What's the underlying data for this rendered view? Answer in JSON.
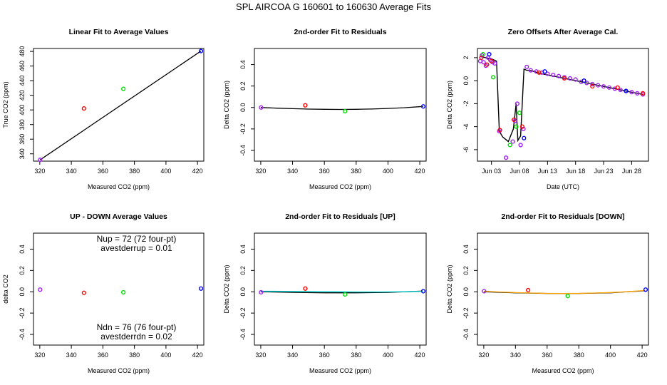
{
  "figure_title": "SPL   AIRCOA G   160601 to 160630   Average Fits",
  "chart_data": [
    {
      "id": "p1",
      "type": "scatter",
      "title": "Linear Fit to Average Values",
      "xlabel": "Measured CO2 (ppm)",
      "ylabel": "True CO2 (ppm)",
      "xlim": [
        316,
        424
      ],
      "ylim": [
        330,
        484
      ],
      "xticks": [
        320,
        340,
        360,
        380,
        400,
        420
      ],
      "yticks": [
        340,
        360,
        380,
        400,
        420,
        440,
        460,
        480
      ],
      "points": [
        {
          "x": 320.2,
          "y": 331.8,
          "color": "#a020f0"
        },
        {
          "x": 348.0,
          "y": 402.0,
          "color": "#ff0000"
        },
        {
          "x": 373.0,
          "y": 428.8,
          "color": "#00dd00"
        },
        {
          "x": 422.2,
          "y": 480.5,
          "color": "#0000ff"
        }
      ],
      "lines": [
        {
          "name": "fit",
          "color": "#000000",
          "x": [
            320.2,
            422.2
          ],
          "y": [
            331.8,
            480.5
          ]
        }
      ],
      "annotations": []
    },
    {
      "id": "p2",
      "type": "scatter",
      "title": "2nd-order Fit to Residuals",
      "xlabel": "Measured CO2 (ppm)",
      "ylabel": "Delta CO2 (ppm)",
      "xlim": [
        316,
        424
      ],
      "ylim": [
        -0.5,
        0.55
      ],
      "xticks": [
        320,
        340,
        360,
        380,
        400,
        420
      ],
      "yticks": [
        -0.4,
        -0.2,
        0.0,
        0.2,
        0.4
      ],
      "points": [
        {
          "x": 320.2,
          "y": 0.0,
          "color": "#a020f0"
        },
        {
          "x": 348.0,
          "y": 0.02,
          "color": "#ff0000"
        },
        {
          "x": 373.0,
          "y": -0.035,
          "color": "#00dd00"
        },
        {
          "x": 422.2,
          "y": 0.01,
          "color": "#0000ff"
        }
      ],
      "lines": [
        {
          "name": "fit",
          "color": "#000000",
          "x": [
            320,
            330,
            340,
            350,
            360,
            370,
            380,
            390,
            400,
            410,
            422
          ],
          "y": [
            0.0,
            -0.006,
            -0.011,
            -0.015,
            -0.017,
            -0.018,
            -0.017,
            -0.014,
            -0.009,
            -0.002,
            0.01
          ]
        }
      ],
      "annotations": []
    },
    {
      "id": "p3",
      "type": "scatter",
      "title": "Zero Offsets After Average Cal.",
      "xlabel": "Date (UTC)",
      "ylabel": "Delta CO2 (ppm)",
      "xlim": [
        0.5,
        31.0
      ],
      "ylim": [
        -7.0,
        2.8
      ],
      "xticks": [
        3,
        8,
        13,
        18,
        23,
        28
      ],
      "xticklabels": [
        "Jun 03",
        "Jun 08",
        "Jun 13",
        "Jun 18",
        "Jun 23",
        "Jun 28"
      ],
      "yticks": [
        -6,
        -4,
        -2,
        0,
        2
      ],
      "points": [],
      "series": [
        {
          "name": "purple",
          "color": "#a020f0",
          "x": [
            1.0,
            1.3,
            1.6,
            2.0,
            2.4,
            2.8,
            3.2,
            3.6,
            4.4,
            5.6,
            6.8,
            7.2,
            7.6,
            8.2,
            8.7,
            9.3,
            10.0,
            11.0,
            12.0,
            13.0,
            14.0,
            15.0,
            16.0,
            17.0,
            18.0,
            19.0,
            20.0,
            21.0,
            22.0,
            23.0,
            24.0,
            25.0,
            26.0,
            27.0,
            28.0,
            29.0,
            30.0
          ],
          "y": [
            1.7,
            2.2,
            1.6,
            1.3,
            2.0,
            1.8,
            1.6,
            1.5,
            -4.4,
            -6.7,
            -5.3,
            -3.5,
            -2.0,
            -5.6,
            -4.2,
            1.2,
            0.9,
            0.8,
            0.7,
            0.6,
            0.5,
            0.4,
            0.3,
            0.2,
            0.1,
            -0.1,
            -0.2,
            -0.3,
            -0.4,
            -0.5,
            -0.6,
            -0.7,
            -0.8,
            -0.9,
            -1.0,
            -1.1,
            -1.2
          ]
        },
        {
          "name": "red",
          "color": "#ff0000",
          "x": [
            1.2,
            2.2,
            3.0,
            4.5,
            7.0,
            8.5,
            11.5,
            16.0,
            21.0,
            25.5,
            30.0
          ],
          "y": [
            2.0,
            1.4,
            1.7,
            -4.3,
            -3.4,
            -4.0,
            0.7,
            0.2,
            -0.5,
            -0.6,
            -1.1
          ]
        },
        {
          "name": "green",
          "color": "#00dd00",
          "x": [
            1.5,
            3.3,
            6.3,
            7.4,
            8.0
          ],
          "y": [
            2.3,
            0.3,
            -5.6,
            -4.0,
            -2.8
          ]
        },
        {
          "name": "blue",
          "color": "#0000ff",
          "x": [
            2.6,
            8.8,
            12.5,
            19.5,
            27.0
          ],
          "y": [
            2.3,
            -5.0,
            0.8,
            0.0,
            -0.9
          ]
        }
      ],
      "lines": [
        {
          "name": "trend",
          "color": "#000000",
          "x": [
            1.0,
            2.0,
            3.0,
            3.9,
            4.4,
            5.0,
            6.0,
            6.9,
            7.4,
            7.7,
            8.2,
            8.8,
            9.3,
            9.8,
            12.0,
            15.0,
            18.0,
            21.0,
            24.0,
            27.0,
            30.0
          ],
          "y": [
            2.1,
            2.0,
            1.9,
            1.7,
            -4.4,
            -4.9,
            -5.3,
            -4.2,
            -2.0,
            -5.2,
            -4.8,
            1.0,
            0.9,
            0.9,
            0.6,
            0.3,
            0.0,
            -0.3,
            -0.6,
            -0.9,
            -1.2
          ]
        }
      ],
      "annotations": []
    },
    {
      "id": "p4",
      "type": "scatter",
      "title": "UP - DOWN Average Values",
      "xlabel": "Measured CO2 (ppm)",
      "ylabel": "delta CO2",
      "xlim": [
        316,
        424
      ],
      "ylim": [
        -0.5,
        0.55
      ],
      "xticks": [
        320,
        340,
        360,
        380,
        400,
        420
      ],
      "yticks": [
        -0.4,
        -0.2,
        0.0,
        0.2,
        0.4
      ],
      "points": [
        {
          "x": 320.2,
          "y": 0.02,
          "color": "#a020f0"
        },
        {
          "x": 348.0,
          "y": -0.01,
          "color": "#ff0000"
        },
        {
          "x": 373.0,
          "y": -0.005,
          "color": "#00dd00"
        },
        {
          "x": 422.2,
          "y": 0.03,
          "color": "#0000ff"
        }
      ],
      "lines": [],
      "annotations": [
        {
          "text": "Nup = 72 (72 four-pt)",
          "pos": "top-1"
        },
        {
          "text": "avestderrup =  0.01",
          "pos": "top-2"
        },
        {
          "text": "Ndn = 76 (76 four-pt)",
          "pos": "bottom-1"
        },
        {
          "text": "avestderrdn =  0.02",
          "pos": "bottom-2"
        }
      ]
    },
    {
      "id": "p5",
      "type": "scatter",
      "title": "2nd-order Fit to Residuals [UP]",
      "xlabel": "Measured CO2 (ppm)",
      "ylabel": "Delta CO2 (ppm)",
      "xlim": [
        316,
        424
      ],
      "ylim": [
        -0.5,
        0.55
      ],
      "xticks": [
        320,
        340,
        360,
        380,
        400,
        420
      ],
      "yticks": [
        -0.4,
        -0.2,
        0.0,
        0.2,
        0.4
      ],
      "points": [
        {
          "x": 320.2,
          "y": -0.005,
          "color": "#a020f0"
        },
        {
          "x": 348.0,
          "y": 0.03,
          "color": "#ff0000"
        },
        {
          "x": 373.0,
          "y": -0.025,
          "color": "#00dd00"
        },
        {
          "x": 422.2,
          "y": 0.005,
          "color": "#0000ff"
        }
      ],
      "lines": [
        {
          "name": "fit",
          "color": "#000000",
          "x": [
            320,
            340,
            360,
            380,
            400,
            422
          ],
          "y": [
            0.0,
            -0.006,
            -0.01,
            -0.01,
            -0.006,
            0.006
          ]
        },
        {
          "name": "up",
          "color": "#00cccc",
          "x": [
            320,
            335,
            350,
            365,
            380,
            395,
            410,
            422
          ],
          "y": [
            0.005,
            0.004,
            0.002,
            0.0,
            -0.002,
            -0.002,
            0.0,
            0.004
          ]
        }
      ],
      "annotations": []
    },
    {
      "id": "p6",
      "type": "scatter",
      "title": "2nd-order Fit to Residuals [DOWN]",
      "xlabel": "Measured CO2 (ppm)",
      "ylabel": "Delta CO2 (ppm)",
      "xlim": [
        316,
        424
      ],
      "ylim": [
        -0.5,
        0.55
      ],
      "xticks": [
        320,
        340,
        360,
        380,
        400,
        420
      ],
      "yticks": [
        -0.4,
        -0.2,
        0.0,
        0.2,
        0.4
      ],
      "points": [
        {
          "x": 320.2,
          "y": 0.005,
          "color": "#a020f0"
        },
        {
          "x": 348.0,
          "y": 0.015,
          "color": "#ff0000"
        },
        {
          "x": 373.0,
          "y": -0.04,
          "color": "#00dd00"
        },
        {
          "x": 422.2,
          "y": 0.02,
          "color": "#0000ff"
        }
      ],
      "lines": [
        {
          "name": "fit",
          "color": "#000000",
          "x": [
            320,
            340,
            360,
            380,
            400,
            422
          ],
          "y": [
            0.0,
            -0.01,
            -0.016,
            -0.016,
            -0.01,
            0.01
          ]
        },
        {
          "name": "down",
          "color": "#ffa500",
          "x": [
            320,
            330,
            340,
            350,
            360,
            370,
            380,
            390,
            400,
            410,
            422
          ],
          "y": [
            0.005,
            -0.002,
            -0.008,
            -0.012,
            -0.015,
            -0.016,
            -0.015,
            -0.012,
            -0.007,
            0.0,
            0.012
          ]
        }
      ],
      "annotations": []
    }
  ]
}
